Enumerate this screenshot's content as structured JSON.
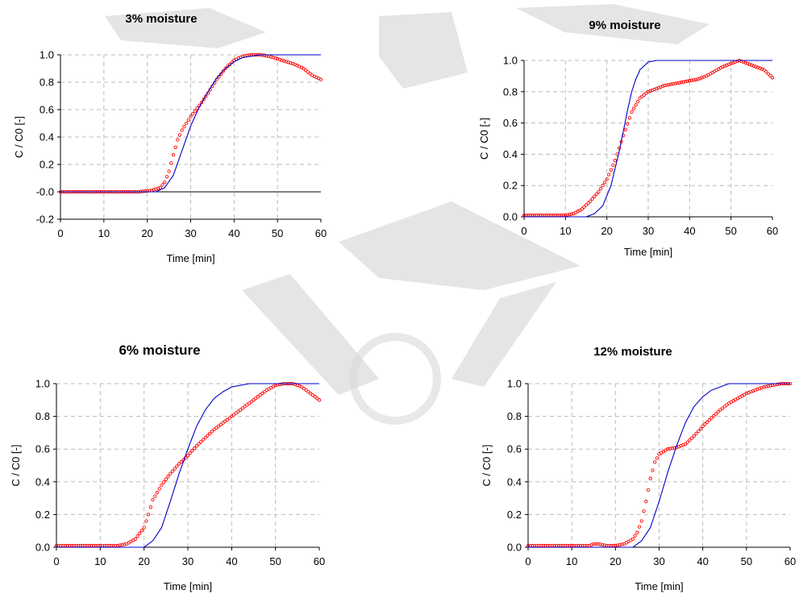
{
  "chart_data": [
    {
      "type": "scatter",
      "title": "3% moisture",
      "xlabel": "Time [min]",
      "ylabel": "C / C0 [-]",
      "xlim": [
        0,
        60
      ],
      "ylim": [
        -0.2,
        1.0
      ],
      "x_ticks": [
        "0",
        "10",
        "20",
        "30",
        "40",
        "50",
        "60"
      ],
      "y_ticks": [
        "-0.2",
        "-0.0",
        "0.2",
        "0.4",
        "0.6",
        "0.8",
        "1.0"
      ],
      "grid": true,
      "zero_line": true,
      "series": [
        {
          "role": "measured",
          "style": "open-circles",
          "color": "#ff0000",
          "points": [
            [
              0,
              0.0
            ],
            [
              18,
              0.0
            ],
            [
              21,
              0.01
            ],
            [
              23,
              0.03
            ],
            [
              24,
              0.07
            ],
            [
              25,
              0.15
            ],
            [
              26,
              0.27
            ],
            [
              27,
              0.38
            ],
            [
              28,
              0.45
            ],
            [
              29,
              0.5
            ],
            [
              30,
              0.55
            ],
            [
              32,
              0.63
            ],
            [
              34,
              0.72
            ],
            [
              36,
              0.82
            ],
            [
              38,
              0.9
            ],
            [
              40,
              0.96
            ],
            [
              42,
              0.99
            ],
            [
              44,
              1.0
            ],
            [
              46,
              1.0
            ],
            [
              48,
              0.99
            ],
            [
              50,
              0.97
            ],
            [
              52,
              0.95
            ],
            [
              54,
              0.93
            ],
            [
              56,
              0.9
            ],
            [
              58,
              0.85
            ],
            [
              60,
              0.82
            ]
          ]
        },
        {
          "role": "model",
          "style": "line",
          "color": "#0000cc",
          "points": [
            [
              0,
              0.0
            ],
            [
              22,
              0.0
            ],
            [
              24,
              0.03
            ],
            [
              26,
              0.12
            ],
            [
              28,
              0.3
            ],
            [
              30,
              0.48
            ],
            [
              32,
              0.62
            ],
            [
              34,
              0.73
            ],
            [
              36,
              0.83
            ],
            [
              38,
              0.9
            ],
            [
              40,
              0.95
            ],
            [
              42,
              0.98
            ],
            [
              44,
              0.99
            ],
            [
              46,
              1.0
            ],
            [
              60,
              1.0
            ]
          ]
        }
      ]
    },
    {
      "type": "scatter",
      "title": "9% moisture",
      "xlabel": "Time [min]",
      "ylabel": "C / C0 [-]",
      "xlim": [
        0,
        60
      ],
      "ylim": [
        0.0,
        1.0
      ],
      "x_ticks": [
        "0",
        "10",
        "20",
        "30",
        "40",
        "50",
        "60"
      ],
      "y_ticks": [
        "0.0",
        "0.2",
        "0.4",
        "0.6",
        "0.8",
        "1.0"
      ],
      "grid": true,
      "zero_line": false,
      "series": [
        {
          "role": "measured",
          "style": "open-circles",
          "color": "#ff0000",
          "points": [
            [
              0,
              0.01
            ],
            [
              10,
              0.01
            ],
            [
              12,
              0.02
            ],
            [
              14,
              0.05
            ],
            [
              16,
              0.1
            ],
            [
              18,
              0.16
            ],
            [
              20,
              0.24
            ],
            [
              22,
              0.36
            ],
            [
              24,
              0.52
            ],
            [
              26,
              0.67
            ],
            [
              28,
              0.76
            ],
            [
              30,
              0.8
            ],
            [
              32,
              0.82
            ],
            [
              34,
              0.84
            ],
            [
              36,
              0.85
            ],
            [
              38,
              0.86
            ],
            [
              40,
              0.87
            ],
            [
              42,
              0.88
            ],
            [
              44,
              0.9
            ],
            [
              46,
              0.93
            ],
            [
              48,
              0.96
            ],
            [
              50,
              0.98
            ],
            [
              52,
              1.0
            ],
            [
              54,
              0.98
            ],
            [
              56,
              0.96
            ],
            [
              58,
              0.94
            ],
            [
              60,
              0.89
            ]
          ]
        },
        {
          "role": "model",
          "style": "line",
          "color": "#0000cc",
          "points": [
            [
              0,
              0.0
            ],
            [
              15,
              0.0
            ],
            [
              17,
              0.02
            ],
            [
              19,
              0.07
            ],
            [
              21,
              0.2
            ],
            [
              23,
              0.42
            ],
            [
              24,
              0.55
            ],
            [
              25,
              0.68
            ],
            [
              26,
              0.8
            ],
            [
              27,
              0.88
            ],
            [
              28,
              0.94
            ],
            [
              30,
              0.99
            ],
            [
              32,
              1.0
            ],
            [
              60,
              1.0
            ]
          ]
        }
      ]
    },
    {
      "type": "scatter",
      "title": "6%  moisture",
      "xlabel": "Time [min]",
      "ylabel": "C / C0 [-]",
      "xlim": [
        0,
        60
      ],
      "ylim": [
        0.0,
        1.0
      ],
      "x_ticks": [
        "0",
        "10",
        "20",
        "30",
        "40",
        "50",
        "60"
      ],
      "y_ticks": [
        "0.0",
        "0.2",
        "0.4",
        "0.6",
        "0.8",
        "1.0"
      ],
      "grid": true,
      "zero_line": false,
      "series": [
        {
          "role": "measured",
          "style": "open-circles",
          "color": "#ff0000",
          "points": [
            [
              0,
              0.01
            ],
            [
              14,
              0.01
            ],
            [
              16,
              0.02
            ],
            [
              18,
              0.05
            ],
            [
              20,
              0.12
            ],
            [
              21,
              0.2
            ],
            [
              22,
              0.29
            ],
            [
              24,
              0.38
            ],
            [
              26,
              0.45
            ],
            [
              28,
              0.51
            ],
            [
              30,
              0.56
            ],
            [
              32,
              0.62
            ],
            [
              34,
              0.67
            ],
            [
              36,
              0.72
            ],
            [
              38,
              0.76
            ],
            [
              40,
              0.8
            ],
            [
              42,
              0.84
            ],
            [
              44,
              0.88
            ],
            [
              46,
              0.92
            ],
            [
              48,
              0.96
            ],
            [
              50,
              0.99
            ],
            [
              52,
              1.0
            ],
            [
              54,
              1.0
            ],
            [
              56,
              0.98
            ],
            [
              58,
              0.94
            ],
            [
              60,
              0.9
            ]
          ]
        },
        {
          "role": "model",
          "style": "line",
          "color": "#0000cc",
          "points": [
            [
              0,
              0.0
            ],
            [
              20,
              0.0
            ],
            [
              22,
              0.04
            ],
            [
              24,
              0.12
            ],
            [
              26,
              0.28
            ],
            [
              28,
              0.45
            ],
            [
              30,
              0.6
            ],
            [
              32,
              0.74
            ],
            [
              34,
              0.84
            ],
            [
              36,
              0.91
            ],
            [
              38,
              0.95
            ],
            [
              40,
              0.98
            ],
            [
              42,
              0.99
            ],
            [
              44,
              1.0
            ],
            [
              60,
              1.0
            ]
          ]
        }
      ]
    },
    {
      "type": "scatter",
      "title": "12% moisture",
      "xlabel": "Time [min]",
      "ylabel": "C / C0 [-]",
      "xlim": [
        0,
        60
      ],
      "ylim": [
        0.0,
        1.0
      ],
      "x_ticks": [
        "0",
        "10",
        "20",
        "30",
        "40",
        "50",
        "60"
      ],
      "y_ticks": [
        "0.0",
        "0.2",
        "0.4",
        "0.6",
        "0.8",
        "1.0"
      ],
      "grid": true,
      "zero_line": false,
      "series": [
        {
          "role": "measured",
          "style": "open-circles",
          "color": "#ff0000",
          "points": [
            [
              0,
              0.01
            ],
            [
              14,
              0.01
            ],
            [
              15,
              0.02
            ],
            [
              16,
              0.02
            ],
            [
              18,
              0.01
            ],
            [
              20,
              0.01
            ],
            [
              22,
              0.02
            ],
            [
              24,
              0.05
            ],
            [
              25,
              0.09
            ],
            [
              26,
              0.16
            ],
            [
              27,
              0.28
            ],
            [
              28,
              0.42
            ],
            [
              29,
              0.52
            ],
            [
              30,
              0.57
            ],
            [
              32,
              0.6
            ],
            [
              34,
              0.61
            ],
            [
              36,
              0.63
            ],
            [
              38,
              0.68
            ],
            [
              40,
              0.74
            ],
            [
              42,
              0.79
            ],
            [
              44,
              0.84
            ],
            [
              46,
              0.88
            ],
            [
              48,
              0.91
            ],
            [
              50,
              0.94
            ],
            [
              52,
              0.96
            ],
            [
              54,
              0.98
            ],
            [
              56,
              0.99
            ],
            [
              58,
              1.0
            ],
            [
              60,
              1.0
            ]
          ]
        },
        {
          "role": "model",
          "style": "line",
          "color": "#0000cc",
          "points": [
            [
              0,
              0.0
            ],
            [
              24,
              0.0
            ],
            [
              26,
              0.04
            ],
            [
              28,
              0.12
            ],
            [
              30,
              0.28
            ],
            [
              32,
              0.46
            ],
            [
              34,
              0.62
            ],
            [
              36,
              0.76
            ],
            [
              38,
              0.86
            ],
            [
              40,
              0.92
            ],
            [
              42,
              0.96
            ],
            [
              44,
              0.98
            ],
            [
              46,
              1.0
            ],
            [
              60,
              1.0
            ]
          ]
        }
      ]
    }
  ]
}
